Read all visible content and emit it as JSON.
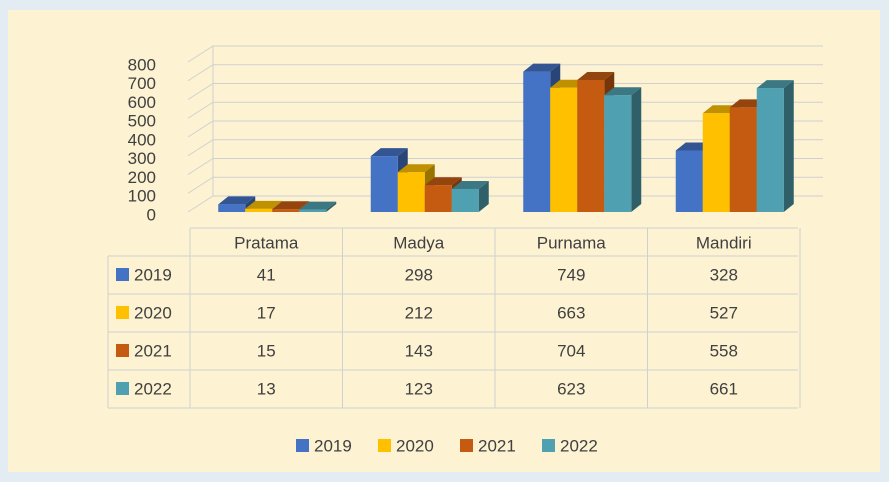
{
  "chart_data": {
    "type": "bar3d",
    "categories": [
      "Pratama",
      "Madya",
      "Purnama",
      "Mandiri"
    ],
    "series": [
      {
        "name": "2019",
        "color": "#4472c4",
        "values": [
          41,
          298,
          749,
          328
        ]
      },
      {
        "name": "2020",
        "color": "#ffc000",
        "values": [
          17,
          212,
          663,
          527
        ]
      },
      {
        "name": "2021",
        "color": "#c55a11",
        "values": [
          15,
          143,
          704,
          558
        ]
      },
      {
        "name": "2022",
        "color": "#4fa0b0",
        "values": [
          13,
          123,
          623,
          661
        ]
      }
    ],
    "ylim": [
      0,
      800
    ],
    "yticks": [
      0,
      100,
      200,
      300,
      400,
      500,
      600,
      700,
      800
    ],
    "grid": true,
    "data_table": true,
    "legend": "bottom"
  }
}
